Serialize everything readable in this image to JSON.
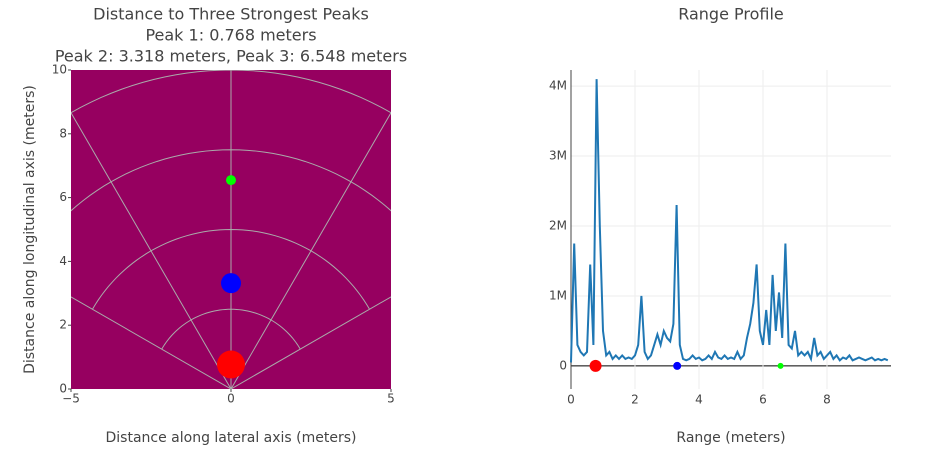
{
  "chart_data": [
    {
      "type": "scatter",
      "title": [
        "Distance to Three Strongest Peaks",
        "Peak 1: 0.768 meters",
        "Peak 2: 3.318 meters, Peak 3: 6.548 meters"
      ],
      "xlabel": "Distance along lateral axis (meters)",
      "ylabel": "Distance along longitudinal axis (meters)",
      "background": "#960060",
      "series": [
        {
          "color": "#ff0000",
          "x": [
            0
          ],
          "values": [
            0.768
          ]
        },
        {
          "color": "#0000ff",
          "x": [
            0
          ],
          "values": [
            3.318
          ]
        },
        {
          "color": "#00ff00",
          "x": [
            0
          ],
          "values": [
            6.548
          ]
        }
      ],
      "xlim": [
        -5,
        5
      ],
      "ylim": [
        0,
        10
      ],
      "xticks": [
        {
          "value": -5,
          "label": "−5"
        },
        0,
        5
      ],
      "yticks": [
        0,
        2,
        4,
        6,
        8,
        10
      ]
    },
    {
      "type": "line",
      "title": "Range Profile",
      "xlabel": "Range (meters)",
      "series": [
        {
          "color": "#1f77b4",
          "x": [
            0,
            0.1,
            0.2,
            0.3,
            0.4,
            0.5,
            0.6,
            0.7,
            0.8,
            0.9,
            1,
            1.1,
            1.2,
            1.3,
            1.4,
            1.5,
            1.6,
            1.7,
            1.8,
            1.9,
            2,
            2.1,
            2.2,
            2.3,
            2.4,
            2.5,
            2.6,
            2.7,
            2.8,
            2.9,
            3,
            3.1,
            3.2,
            3.3,
            3.4,
            3.5,
            3.6,
            3.7,
            3.8,
            3.9,
            4,
            4.1,
            4.2,
            4.3,
            4.4,
            4.5,
            4.6,
            4.7,
            4.8,
            4.9,
            5,
            5.1,
            5.2,
            5.3,
            5.4,
            5.5,
            5.6,
            5.7,
            5.8,
            5.9,
            6,
            6.1,
            6.2,
            6.3,
            6.4,
            6.5,
            6.6,
            6.7,
            6.8,
            6.9,
            7,
            7.1,
            7.2,
            7.3,
            7.4,
            7.5,
            7.6,
            7.7,
            7.8,
            7.9,
            8,
            8.1,
            8.2,
            8.3,
            8.4,
            8.5,
            8.6,
            8.7,
            8.8,
            8.9,
            9,
            9.1,
            9.2,
            9.3,
            9.4,
            9.5,
            9.6,
            9.7,
            9.8,
            9.9
          ],
          "values": [
            50000,
            1750000,
            300000,
            200000,
            150000,
            200000,
            1450000,
            300000,
            4100000,
            2000000,
            500000,
            150000,
            200000,
            100000,
            150000,
            100000,
            150000,
            100000,
            120000,
            100000,
            150000,
            300000,
            1000000,
            200000,
            100000,
            150000,
            300000,
            450000,
            300000,
            500000,
            400000,
            350000,
            600000,
            2300000,
            300000,
            100000,
            80000,
            100000,
            150000,
            100000,
            120000,
            80000,
            100000,
            150000,
            100000,
            200000,
            120000,
            100000,
            150000,
            100000,
            120000,
            100000,
            200000,
            100000,
            150000,
            400000,
            600000,
            900000,
            1450000,
            500000,
            300000,
            800000,
            300000,
            1300000,
            500000,
            1050000,
            400000,
            1750000,
            300000,
            250000,
            500000,
            150000,
            200000,
            150000,
            200000,
            100000,
            400000,
            150000,
            200000,
            100000,
            150000,
            200000,
            100000,
            150000,
            80000,
            120000,
            100000,
            150000,
            80000,
            100000,
            120000,
            100000,
            80000,
            100000,
            120000,
            80000,
            100000,
            80000,
            100000,
            80000
          ]
        },
        {
          "type": "scatter",
          "color": [
            "#ff0000",
            "#0000ff",
            "#00ff00"
          ],
          "x": [
            0.768,
            3.318,
            6.548
          ],
          "values": [
            0,
            0,
            0
          ]
        }
      ],
      "xlim": [
        0,
        10
      ],
      "ylim": [
        -330000,
        4230000
      ],
      "xticks": [
        0,
        2,
        4,
        6,
        8
      ],
      "yticks": [
        0,
        {
          "value": 1000000,
          "label": "1M"
        },
        {
          "value": 2000000,
          "label": "2M"
        },
        {
          "value": 3000000,
          "label": "3M"
        },
        {
          "value": 4000000,
          "label": "4M"
        }
      ],
      "grid": true
    }
  ]
}
